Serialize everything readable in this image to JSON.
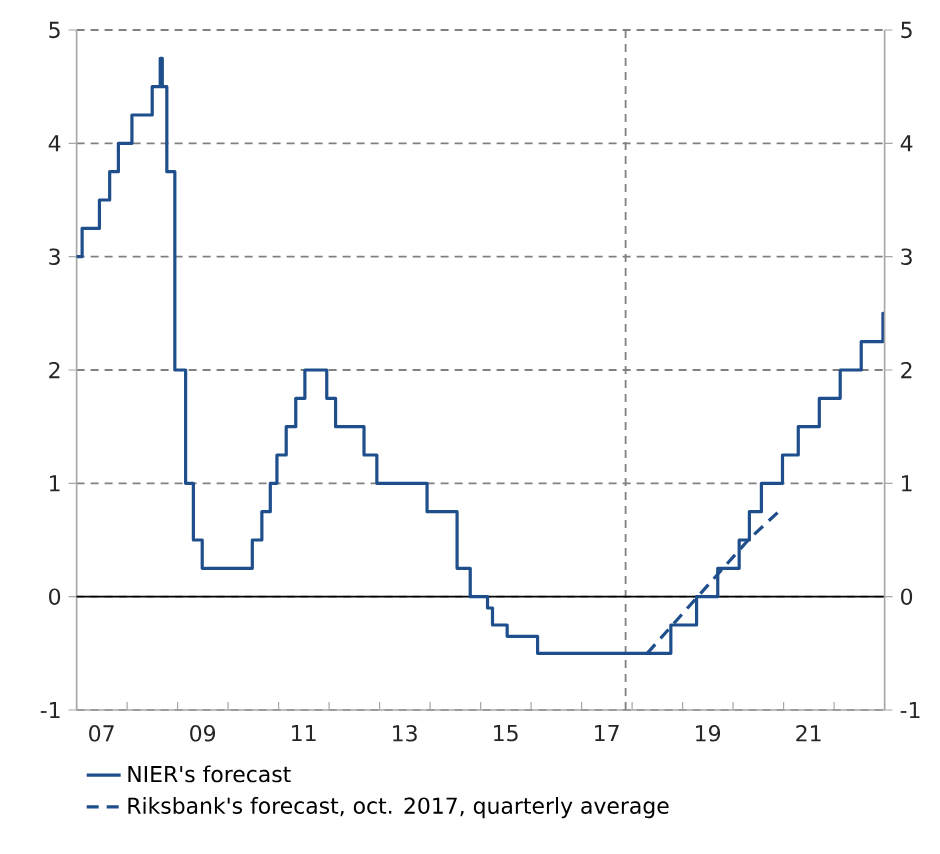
{
  "chart_data": {
    "type": "step",
    "xlim": [
      "2007-01-01",
      "2023-01-01"
    ],
    "ylim": [
      -1,
      5
    ],
    "yticks": [
      -1,
      0,
      1,
      2,
      3,
      4,
      5
    ],
    "y2lim": [
      -1,
      5
    ],
    "y2ticks": [
      -1,
      0,
      1,
      2,
      3,
      4,
      5
    ],
    "xticks": [
      {
        "value": "2007-01-01",
        "label": null
      },
      {
        "value": "2008-01-01",
        "label": null
      },
      {
        "value": "2009-01-01",
        "label": null
      },
      {
        "value": "2010-01-01",
        "label": null
      },
      {
        "value": "2011-01-01",
        "label": null
      },
      {
        "value": "2012-01-01",
        "label": null
      },
      {
        "value": "2013-01-01",
        "label": null
      },
      {
        "value": "2014-01-01",
        "label": null
      },
      {
        "value": "2015-01-01",
        "label": null
      },
      {
        "value": "2016-01-01",
        "label": null
      },
      {
        "value": "2017-01-01",
        "label": null
      },
      {
        "value": "2018-01-01",
        "label": null
      },
      {
        "value": "2019-01-01",
        "label": null
      },
      {
        "value": "2020-01-01",
        "label": null
      },
      {
        "value": "2021-01-01",
        "label": null
      },
      {
        "value": "2022-01-01",
        "label": null
      },
      {
        "value": "2023-01-01",
        "label": null
      },
      {
        "value": "2007-07-01",
        "label": "07"
      },
      {
        "value": "2009-07-01",
        "label": "09"
      },
      {
        "value": "2011-07-01",
        "label": "11"
      },
      {
        "value": "2013-07-01",
        "label": "13"
      },
      {
        "value": "2015-07-01",
        "label": "15"
      },
      {
        "value": "2017-07-01",
        "label": "17"
      },
      {
        "value": "2019-07-01",
        "label": "19"
      },
      {
        "value": "2021-07-01",
        "label": "21"
      }
    ],
    "grid": "y",
    "legend": "bottom",
    "ref_lines": [
      {
        "axis": "x",
        "value": "2017-11-15",
        "color": "#808080",
        "line_style": "dashed"
      },
      {
        "axis": "y",
        "value": 0,
        "color": "#000000",
        "line_style": "solid"
      }
    ],
    "series": [
      {
        "name": "NIER's forecast",
        "color": "#1f4e8c",
        "line_style": "solid",
        "x": [
          "2007-01-01",
          "2007-02-10",
          "2007-06-15",
          "2007-08-28",
          "2007-10-30",
          "2008-02-05",
          "2008-07-01",
          "2008-08-28",
          "2008-09-12",
          "2008-10-15",
          "2008-12-12",
          "2009-02-28",
          "2009-04-25",
          "2009-06-28",
          "2010-06-25",
          "2010-09-02",
          "2010-11-02",
          "2010-12-20",
          "2011-02-25",
          "2011-05-05",
          "2011-07-10",
          "2011-12-15",
          "2012-02-17",
          "2012-09-10",
          "2012-12-12",
          "2013-12-10",
          "2014-07-15",
          "2014-10-18",
          "2015-02-20",
          "2015-03-28",
          "2015-07-12",
          "2016-02-17",
          "2018-10-08",
          "2019-04-12",
          "2019-09-12",
          "2020-02-14",
          "2020-04-28",
          "2020-07-24",
          "2020-12-24",
          "2021-04-17",
          "2021-09-16",
          "2022-02-14",
          "2022-07-16",
          "2022-12-20",
          "2023-01-01"
        ],
        "values": [
          3.0,
          3.25,
          3.5,
          3.75,
          4.0,
          4.25,
          4.5,
          4.75,
          4.5,
          3.75,
          2.0,
          1.0,
          0.5,
          0.25,
          0.5,
          0.75,
          1.0,
          1.25,
          1.5,
          1.75,
          2.0,
          1.75,
          1.5,
          1.25,
          1.0,
          0.75,
          0.25,
          0.0,
          -0.1,
          -0.25,
          -0.35,
          -0.5,
          -0.25,
          0.0,
          0.25,
          0.5,
          0.75,
          1.0,
          1.25,
          1.5,
          1.75,
          2.0,
          2.25,
          2.5,
          2.5
        ]
      },
      {
        "name": "Riksbank's forecast, oct. 2017, quarterly average",
        "type": "line",
        "color": "#1f4e8c",
        "line_style": "dashed",
        "x": [
          "2018-04-20",
          "2018-10-20",
          "2019-04-20",
          "2019-10-20",
          "2020-04-20",
          "2020-11-25"
        ],
        "values": [
          -0.5,
          -0.25,
          0.0,
          0.25,
          0.5,
          0.75
        ]
      }
    ]
  }
}
